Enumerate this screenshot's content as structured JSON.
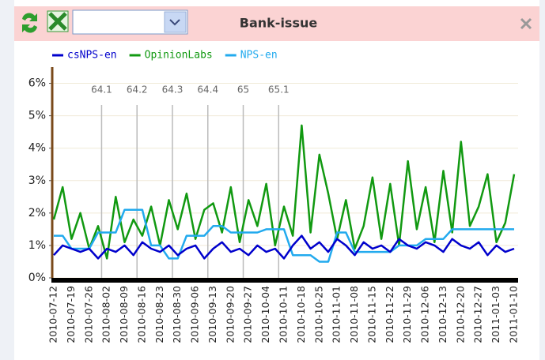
{
  "header": {
    "title": "Bank-issue"
  },
  "chart_data": {
    "type": "line",
    "categories": [
      "2010-07-12",
      null,
      "2010-07-19",
      null,
      "2010-07-26",
      null,
      "2010-08-02",
      null,
      "2010-08-09",
      null,
      "2010-08-16",
      null,
      "2010-08-23",
      null,
      "2010-08-30",
      null,
      "2010-09-06",
      null,
      "2010-09-13",
      null,
      "2010-09-20",
      null,
      "2010-09-27",
      null,
      "2010-10-04",
      null,
      "2010-10-11",
      null,
      "2010-10-18",
      null,
      "2010-10-25",
      null,
      "2010-11-01",
      null,
      "2010-11-08",
      null,
      "2010-11-15",
      null,
      "2010-11-22",
      null,
      "2010-11-29",
      null,
      "2010-12-06",
      null,
      "2010-12-13",
      null,
      "2010-12-20",
      null,
      "2010-12-27",
      null,
      "2011-01-03",
      null,
      "2011-01-10"
    ],
    "series": [
      {
        "name": "csNPS-en",
        "color": "#0000cc",
        "values": [
          0.7,
          1.0,
          0.9,
          0.8,
          0.9,
          0.6,
          0.9,
          0.8,
          1.0,
          0.7,
          1.1,
          0.9,
          0.8,
          1.0,
          0.7,
          0.9,
          1.0,
          0.6,
          0.9,
          1.1,
          0.8,
          0.9,
          0.7,
          1.0,
          0.8,
          0.9,
          0.6,
          1.0,
          1.3,
          0.9,
          1.1,
          0.8,
          1.2,
          1.0,
          0.7,
          1.1,
          0.9,
          1.0,
          0.8,
          1.2,
          1.0,
          0.9,
          1.1,
          1.0,
          0.8,
          1.2,
          1.0,
          0.9,
          1.1,
          0.7,
          1.0,
          0.8,
          0.9
        ]
      },
      {
        "name": "OpinionLabs",
        "color": "#119911",
        "values": [
          1.8,
          2.8,
          1.2,
          2.0,
          0.9,
          1.6,
          0.6,
          2.5,
          1.1,
          1.8,
          1.3,
          2.2,
          1.0,
          2.4,
          1.5,
          2.6,
          1.2,
          2.1,
          2.3,
          1.4,
          2.8,
          1.1,
          2.4,
          1.6,
          2.9,
          1.0,
          2.2,
          1.3,
          4.7,
          1.4,
          3.8,
          2.6,
          1.2,
          2.4,
          0.9,
          1.6,
          3.1,
          1.2,
          2.9,
          1.0,
          3.6,
          1.5,
          2.8,
          1.1,
          3.3,
          1.4,
          4.2,
          1.6,
          2.2,
          3.2,
          1.1,
          1.7,
          3.2
        ]
      },
      {
        "name": "NPS-en",
        "color": "#22aaee",
        "values": [
          1.3,
          1.3,
          0.9,
          0.9,
          0.9,
          1.4,
          1.4,
          1.4,
          2.1,
          2.1,
          2.1,
          1.0,
          1.0,
          0.6,
          0.6,
          1.3,
          1.3,
          1.3,
          1.6,
          1.6,
          1.4,
          1.4,
          1.4,
          1.4,
          1.5,
          1.5,
          1.5,
          0.7,
          0.7,
          0.7,
          0.5,
          0.5,
          1.4,
          1.4,
          0.8,
          0.8,
          0.8,
          0.8,
          0.8,
          1.0,
          1.0,
          1.0,
          1.2,
          1.2,
          1.2,
          1.5,
          1.5,
          1.5,
          1.5,
          1.5,
          1.5,
          1.5,
          1.5
        ]
      }
    ],
    "ylim": [
      0,
      6.5
    ],
    "yticks": [
      {
        "value": 0,
        "label": "0%"
      },
      {
        "value": 1,
        "label": "1%"
      },
      {
        "value": 2,
        "label": "2%"
      },
      {
        "value": 3,
        "label": "3%"
      },
      {
        "value": 4,
        "label": "4%"
      },
      {
        "value": 5,
        "label": "5%"
      },
      {
        "value": 6,
        "label": "6%"
      }
    ],
    "grid": true,
    "legend": "top",
    "annotations": [
      {
        "label": "64.1",
        "x": 5.4
      },
      {
        "label": "64.2",
        "x": 9.4
      },
      {
        "label": "64.3",
        "x": 13.4
      },
      {
        "label": "64.4",
        "x": 17.4
      },
      {
        "label": "65",
        "x": 21.4
      },
      {
        "label": "65.1",
        "x": 25.4
      }
    ]
  }
}
